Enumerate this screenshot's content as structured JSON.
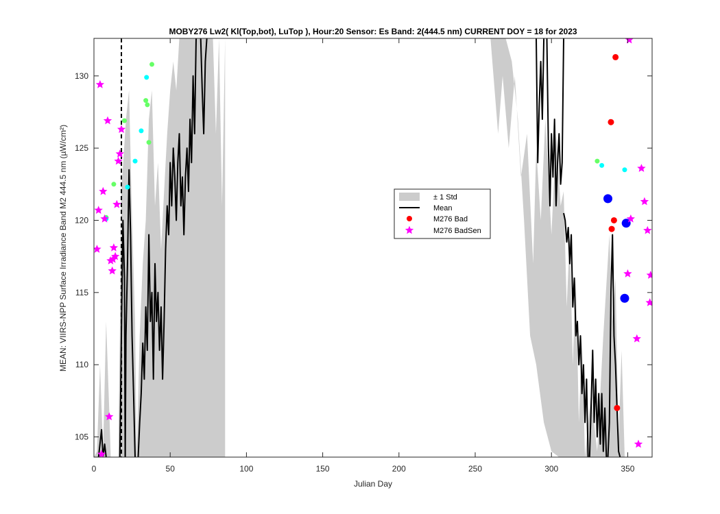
{
  "chart_data": {
    "type": "line",
    "title": "MOBY276   Lw2( Kl(Top,bot), LuTop ),   Hour:20 Sensor: Es Band: 2(444.5 nm)   CURRENT DOY = 18 for 2023",
    "xlabel": "Julian Day",
    "ylabel": "MEAN: VIIRS-NPP Surface Irradiance Band M2 444.5 nm (µW/cm²)",
    "xlim": [
      0,
      366
    ],
    "ylim": [
      103.6,
      132.6
    ],
    "x_ticks": [
      0,
      50,
      100,
      150,
      200,
      250,
      300,
      350
    ],
    "y_ticks": [
      105,
      110,
      115,
      120,
      125,
      130
    ],
    "grid": false,
    "current_doy": 18,
    "legend_position": "center-right",
    "legend": [
      {
        "label": "± 1 Std",
        "kind": "patch"
      },
      {
        "label": "Mean",
        "kind": "line"
      },
      {
        "label": "M276 Bad",
        "kind": "marker"
      },
      {
        "label": "M276 BadSen",
        "kind": "marker"
      }
    ],
    "colors": {
      "std_band": "#cccccc",
      "mean": "#000000",
      "bad": "#ff0000",
      "badsen": "#ff00ff",
      "current": "#0000ff",
      "cyan": "#00ffff",
      "green": "#66ff66"
    },
    "mean_segments": [
      [
        [
          3,
          103.6
        ],
        [
          5,
          105.5
        ],
        [
          6,
          103.6
        ],
        [
          7,
          104.5
        ],
        [
          8,
          103.6
        ]
      ],
      [
        [
          17,
          103.6
        ],
        [
          18,
          112
        ],
        [
          19,
          120
        ],
        [
          20,
          116
        ],
        [
          20.5,
          103.6
        ]
      ],
      [
        [
          20.5,
          103.6
        ],
        [
          21,
          112
        ],
        [
          22,
          117
        ],
        [
          23,
          123.5
        ],
        [
          24,
          119
        ],
        [
          25,
          112
        ],
        [
          26,
          108
        ],
        [
          27,
          103.6
        ]
      ],
      [
        [
          29,
          103.6
        ],
        [
          30,
          106
        ],
        [
          31,
          108
        ],
        [
          32,
          111.5
        ],
        [
          33,
          109
        ],
        [
          34,
          114
        ],
        [
          35,
          111
        ],
        [
          36,
          119
        ],
        [
          37,
          113
        ],
        [
          38,
          115
        ],
        [
          39,
          109
        ],
        [
          40,
          117
        ],
        [
          41,
          113
        ],
        [
          42,
          115
        ],
        [
          43,
          111
        ],
        [
          44,
          114
        ],
        [
          45,
          109
        ],
        [
          46,
          113
        ],
        [
          47,
          118
        ],
        [
          48,
          121
        ],
        [
          49,
          119
        ],
        [
          50,
          124
        ],
        [
          51,
          121
        ],
        [
          52,
          125
        ],
        [
          53,
          123
        ],
        [
          54,
          120
        ],
        [
          55,
          124
        ],
        [
          56,
          126
        ],
        [
          57,
          121
        ],
        [
          58,
          123
        ],
        [
          59,
          119
        ],
        [
          60,
          123
        ],
        [
          61,
          125
        ],
        [
          62,
          122
        ],
        [
          63,
          127
        ],
        [
          64,
          124
        ],
        [
          65,
          130
        ],
        [
          66,
          126
        ],
        [
          67,
          132.6
        ]
      ],
      [
        [
          70,
          132.6
        ],
        [
          71,
          129
        ],
        [
          72,
          126
        ],
        [
          73,
          131
        ],
        [
          74,
          132.6
        ]
      ],
      [
        [
          290,
          132.6
        ],
        [
          291,
          124
        ],
        [
          292,
          128
        ],
        [
          293,
          131
        ],
        [
          294,
          127
        ],
        [
          295,
          132.6
        ]
      ],
      [
        [
          297,
          132.6
        ],
        [
          298,
          125
        ],
        [
          299,
          121
        ],
        [
          300,
          126
        ],
        [
          301,
          123
        ],
        [
          302,
          127
        ],
        [
          303,
          121
        ],
        [
          304,
          124
        ],
        [
          305,
          126
        ],
        [
          306,
          122.5
        ],
        [
          307,
          124
        ],
        [
          308,
          132.6
        ]
      ],
      [
        [
          308,
          120.5
        ],
        [
          309,
          120
        ],
        [
          310,
          118.5
        ],
        [
          311,
          119.5
        ],
        [
          312,
          117
        ],
        [
          313,
          119
        ],
        [
          314,
          114
        ],
        [
          315,
          116
        ],
        [
          316,
          112
        ],
        [
          317,
          113
        ],
        [
          318,
          110
        ],
        [
          319,
          112
        ],
        [
          320,
          108
        ],
        [
          321,
          110
        ],
        [
          322,
          106
        ],
        [
          323,
          109
        ],
        [
          324,
          103.6
        ]
      ],
      [
        [
          325,
          103.6
        ],
        [
          326,
          107
        ],
        [
          327,
          111
        ],
        [
          328,
          106
        ],
        [
          329,
          109
        ],
        [
          330,
          105
        ],
        [
          331,
          108
        ],
        [
          332,
          104.5
        ],
        [
          333,
          108
        ],
        [
          334,
          104
        ],
        [
          335,
          107
        ],
        [
          336,
          103.6
        ]
      ],
      [
        [
          337,
          103.6
        ],
        [
          338,
          106
        ],
        [
          339,
          115
        ],
        [
          340,
          119
        ],
        [
          341,
          112
        ],
        [
          342,
          110
        ],
        [
          343,
          107
        ],
        [
          344,
          104
        ],
        [
          345,
          103.6
        ]
      ]
    ],
    "std_band": [
      [
        [
          0,
          103.6
        ],
        [
          2,
          104
        ],
        [
          4,
          110
        ],
        [
          6,
          104
        ],
        [
          8,
          113
        ],
        [
          10,
          107
        ],
        [
          11,
          103.6
        ]
      ],
      [
        [
          16,
          103.6
        ],
        [
          18,
          122
        ],
        [
          21,
          127
        ],
        [
          23,
          129
        ],
        [
          25,
          120
        ],
        [
          27,
          113
        ],
        [
          28,
          103.6
        ]
      ],
      [
        [
          28,
          103.6
        ],
        [
          30,
          112
        ],
        [
          32,
          117
        ],
        [
          34,
          120
        ],
        [
          36,
          127
        ],
        [
          38,
          129
        ],
        [
          40,
          121
        ],
        [
          42,
          124
        ],
        [
          44,
          118
        ],
        [
          46,
          122
        ],
        [
          48,
          126
        ],
        [
          50,
          129
        ],
        [
          52,
          131
        ],
        [
          54,
          129
        ],
        [
          56,
          132.6
        ],
        [
          78,
          132.6
        ],
        [
          80,
          126
        ],
        [
          82,
          132.6
        ],
        [
          84,
          121
        ],
        [
          86,
          132.6
        ]
      ],
      [
        [
          260,
          132.6
        ],
        [
          265,
          126
        ],
        [
          268,
          130
        ],
        [
          272,
          125
        ],
        [
          276,
          130
        ],
        [
          280,
          123
        ],
        [
          284,
          126
        ],
        [
          288,
          117
        ],
        [
          290,
          125
        ],
        [
          293,
          120
        ],
        [
          296,
          127
        ],
        [
          300,
          119
        ],
        [
          303,
          126
        ],
        [
          306,
          121
        ],
        [
          308,
          122
        ],
        [
          310,
          114
        ],
        [
          312,
          119
        ],
        [
          314,
          110
        ],
        [
          316,
          116
        ],
        [
          318,
          106
        ],
        [
          320,
          112
        ],
        [
          322,
          103.6
        ]
      ],
      [
        [
          322,
          103.6
        ],
        [
          326,
          108
        ],
        [
          330,
          104
        ],
        [
          334,
          112
        ],
        [
          338,
          119
        ],
        [
          340,
          113
        ],
        [
          342,
          116
        ],
        [
          344,
          105
        ],
        [
          346,
          111
        ],
        [
          348,
          103.6
        ]
      ]
    ],
    "std_band_lower": [
      [
        [
          0,
          103.6
        ],
        [
          11,
          103.6
        ]
      ],
      [
        [
          16,
          103.6
        ],
        [
          28,
          103.6
        ]
      ],
      [
        [
          28,
          103.6
        ],
        [
          86,
          103.6
        ]
      ],
      [
        [
          260,
          132.6
        ],
        [
          266,
          132.6
        ],
        [
          270,
          132.6
        ],
        [
          274,
          131
        ],
        [
          278,
          127
        ],
        [
          282,
          120
        ],
        [
          286,
          112
        ],
        [
          290,
          110
        ],
        [
          295,
          106
        ],
        [
          300,
          104
        ],
        [
          305,
          103.6
        ],
        [
          322,
          103.6
        ]
      ],
      [
        [
          322,
          103.6
        ],
        [
          348,
          103.6
        ]
      ]
    ],
    "bad_points": [
      {
        "x": 339,
        "y": 126.8
      },
      {
        "x": 342,
        "y": 131.3
      },
      {
        "x": 341,
        "y": 120.0
      },
      {
        "x": 339.5,
        "y": 119.4
      },
      {
        "x": 343,
        "y": 107.0
      }
    ],
    "badsen_points": [
      {
        "x": 2,
        "y": 118.0
      },
      {
        "x": 3,
        "y": 120.7
      },
      {
        "x": 4,
        "y": 129.4
      },
      {
        "x": 5,
        "y": 103.8
      },
      {
        "x": 6,
        "y": 122.0
      },
      {
        "x": 7,
        "y": 120.1
      },
      {
        "x": 9,
        "y": 126.9
      },
      {
        "x": 10,
        "y": 106.4
      },
      {
        "x": 11,
        "y": 117.2
      },
      {
        "x": 12,
        "y": 116.5
      },
      {
        "x": 12.5,
        "y": 117.3
      },
      {
        "x": 13,
        "y": 118.1
      },
      {
        "x": 14,
        "y": 117.5
      },
      {
        "x": 15,
        "y": 121.1
      },
      {
        "x": 16,
        "y": 124.1
      },
      {
        "x": 17,
        "y": 124.6
      },
      {
        "x": 18,
        "y": 126.3
      },
      {
        "x": 351,
        "y": 132.5
      },
      {
        "x": 350,
        "y": 116.3
      },
      {
        "x": 352,
        "y": 120.1
      },
      {
        "x": 356,
        "y": 111.8
      },
      {
        "x": 357,
        "y": 104.5
      },
      {
        "x": 359,
        "y": 123.6
      },
      {
        "x": 361,
        "y": 121.3
      },
      {
        "x": 363,
        "y": 119.3
      },
      {
        "x": 365,
        "y": 116.2
      },
      {
        "x": 364.5,
        "y": 114.3
      }
    ],
    "cyan_points": [
      {
        "x": 8,
        "y": 120.1
      },
      {
        "x": 22,
        "y": 122.3
      },
      {
        "x": 27,
        "y": 124.1
      },
      {
        "x": 31,
        "y": 126.2
      },
      {
        "x": 34.5,
        "y": 129.9
      },
      {
        "x": 333,
        "y": 123.8
      },
      {
        "x": 348,
        "y": 123.5
      }
    ],
    "green_points": [
      {
        "x": 8,
        "y": 120.2
      },
      {
        "x": 13,
        "y": 122.5
      },
      {
        "x": 20,
        "y": 126.9
      },
      {
        "x": 34,
        "y": 128.3
      },
      {
        "x": 35,
        "y": 128.0
      },
      {
        "x": 36,
        "y": 125.4
      },
      {
        "x": 38,
        "y": 130.8
      },
      {
        "x": 330,
        "y": 124.1
      }
    ],
    "current_points": [
      {
        "x": 337,
        "y": 121.5
      },
      {
        "x": 349,
        "y": 119.8
      },
      {
        "x": 348,
        "y": 114.6
      }
    ]
  }
}
